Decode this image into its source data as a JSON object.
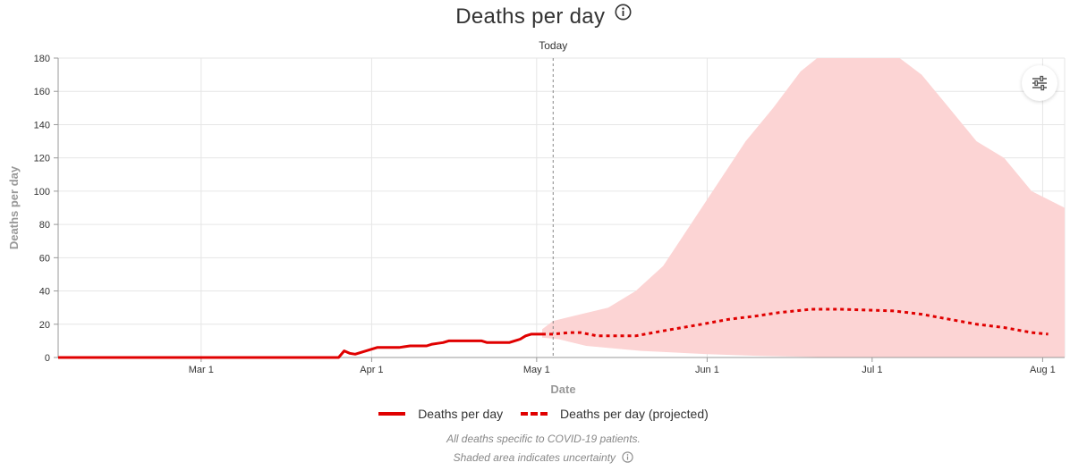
{
  "chart_data": {
    "type": "line",
    "title": "Deaths per day",
    "xlabel": "Date",
    "ylabel": "Deaths per day",
    "ylim": [
      0,
      180
    ],
    "yticks": [
      0,
      20,
      40,
      60,
      80,
      100,
      120,
      140,
      160,
      180
    ],
    "xlim": [
      "2020-02-04",
      "2020-08-05"
    ],
    "xticks": [
      {
        "date": "2020-03-01",
        "label": "Mar 1"
      },
      {
        "date": "2020-04-01",
        "label": "Apr 1"
      },
      {
        "date": "2020-05-01",
        "label": "May 1"
      },
      {
        "date": "2020-06-01",
        "label": "Jun 1"
      },
      {
        "date": "2020-07-01",
        "label": "Jul 1"
      },
      {
        "date": "2020-08-01",
        "label": "Aug 1"
      }
    ],
    "grid": true,
    "today": {
      "date": "2020-05-04",
      "label": "Today"
    },
    "series": [
      {
        "name": "Deaths per day",
        "style": "solid",
        "color": "#e00000",
        "points": [
          [
            "2020-02-04",
            0
          ],
          [
            "2020-03-26",
            0
          ],
          [
            "2020-03-27",
            4
          ],
          [
            "2020-03-28",
            2.5
          ],
          [
            "2020-03-29",
            2
          ],
          [
            "2020-03-30",
            3
          ],
          [
            "2020-03-31",
            4
          ],
          [
            "2020-04-01",
            5
          ],
          [
            "2020-04-02",
            6
          ],
          [
            "2020-04-06",
            6
          ],
          [
            "2020-04-07",
            6.5
          ],
          [
            "2020-04-08",
            7
          ],
          [
            "2020-04-11",
            7
          ],
          [
            "2020-04-12",
            8
          ],
          [
            "2020-04-13",
            8.5
          ],
          [
            "2020-04-14",
            9
          ],
          [
            "2020-04-15",
            10
          ],
          [
            "2020-04-21",
            10
          ],
          [
            "2020-04-22",
            9
          ],
          [
            "2020-04-26",
            9
          ],
          [
            "2020-04-27",
            10
          ],
          [
            "2020-04-28",
            11
          ],
          [
            "2020-04-29",
            13
          ],
          [
            "2020-04-30",
            14
          ],
          [
            "2020-05-02",
            14
          ]
        ]
      },
      {
        "name": "Deaths per day (projected)",
        "style": "dashed",
        "color": "#e00000",
        "points": [
          [
            "2020-05-02",
            14
          ],
          [
            "2020-05-04",
            14
          ],
          [
            "2020-05-07",
            15
          ],
          [
            "2020-05-09",
            15
          ],
          [
            "2020-05-12",
            13
          ],
          [
            "2020-05-19",
            13
          ],
          [
            "2020-05-24",
            16
          ],
          [
            "2020-05-31",
            20
          ],
          [
            "2020-06-05",
            23
          ],
          [
            "2020-06-10",
            25
          ],
          [
            "2020-06-14",
            27
          ],
          [
            "2020-06-20",
            29
          ],
          [
            "2020-06-25",
            29
          ],
          [
            "2020-07-05",
            28
          ],
          [
            "2020-07-10",
            26
          ],
          [
            "2020-07-15",
            23
          ],
          [
            "2020-07-20",
            20
          ],
          [
            "2020-07-25",
            18
          ],
          [
            "2020-07-30",
            15
          ],
          [
            "2020-08-02",
            14
          ]
        ]
      }
    ],
    "uncertainty": {
      "color": "#fcd4d4",
      "upper": [
        [
          "2020-05-02",
          17
        ],
        [
          "2020-05-04",
          22
        ],
        [
          "2020-05-09",
          26
        ],
        [
          "2020-05-14",
          30
        ],
        [
          "2020-05-19",
          40
        ],
        [
          "2020-05-24",
          55
        ],
        [
          "2020-05-29",
          80
        ],
        [
          "2020-06-03",
          105
        ],
        [
          "2020-06-08",
          130
        ],
        [
          "2020-06-13",
          150
        ],
        [
          "2020-06-18",
          172
        ],
        [
          "2020-06-21",
          180
        ],
        [
          "2020-07-06",
          180
        ],
        [
          "2020-07-10",
          170
        ],
        [
          "2020-07-15",
          150
        ],
        [
          "2020-07-20",
          130
        ],
        [
          "2020-07-25",
          120
        ],
        [
          "2020-07-30",
          100
        ],
        [
          "2020-08-05",
          90
        ]
      ],
      "lower": [
        [
          "2020-05-02",
          12
        ],
        [
          "2020-05-05",
          11
        ],
        [
          "2020-05-10",
          7
        ],
        [
          "2020-05-20",
          4
        ],
        [
          "2020-06-01",
          2
        ],
        [
          "2020-06-10",
          1
        ],
        [
          "2020-06-25",
          0
        ],
        [
          "2020-08-05",
          0
        ]
      ]
    }
  },
  "legend": {
    "actual_label": "Deaths per day",
    "projected_label": "Deaths per day (projected)"
  },
  "notes": {
    "line1": "All deaths specific to COVID-19 patients.",
    "line2": "Shaded area indicates uncertainty"
  },
  "icons": {
    "title_info": "info-icon",
    "settings": "sliders-icon",
    "note_info": "info-icon"
  }
}
